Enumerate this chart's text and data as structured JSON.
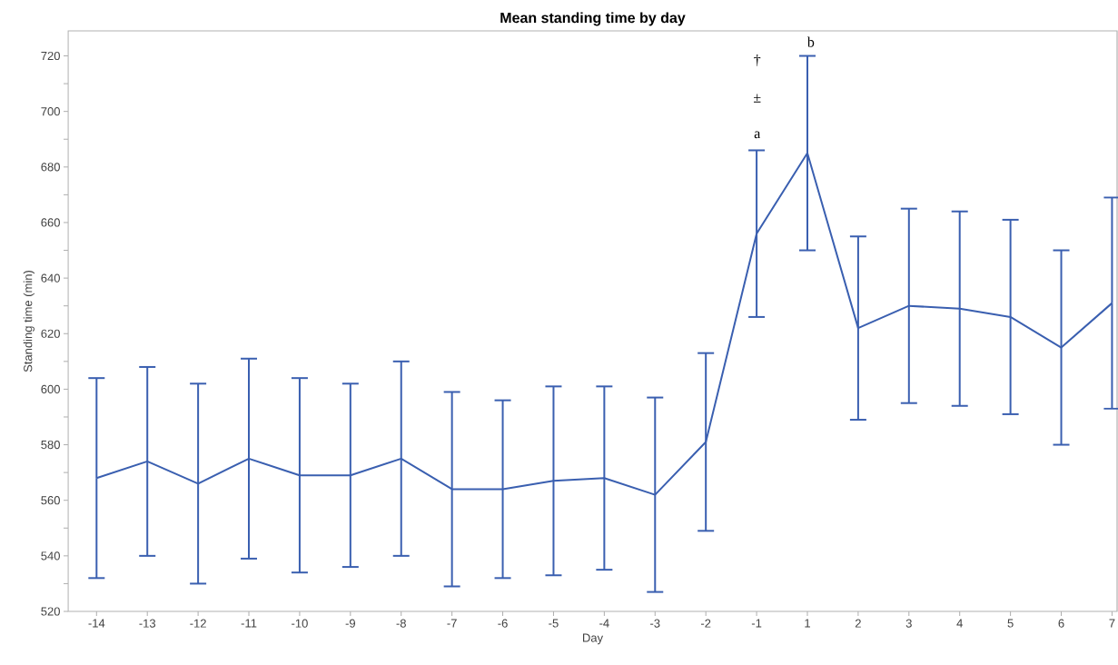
{
  "chart_data": {
    "type": "line",
    "title": "Mean standing time by day",
    "xlabel": "Day",
    "ylabel": "Standing time (min)",
    "categories": [
      "-14",
      "-13",
      "-12",
      "-11",
      "-10",
      "-9",
      "-8",
      "-7",
      "-6",
      "-5",
      "-4",
      "-3",
      "-2",
      "-1",
      "1",
      "2",
      "3",
      "4",
      "5",
      "6",
      "7"
    ],
    "values": [
      568,
      574,
      566,
      575,
      569,
      569,
      575,
      564,
      564,
      567,
      568,
      562,
      581,
      656,
      685,
      622,
      630,
      629,
      626,
      615,
      631
    ],
    "errors": [
      36,
      34,
      36,
      36,
      35,
      33,
      35,
      35,
      32,
      34,
      33,
      35,
      32,
      30,
      35,
      33,
      35,
      35,
      35,
      35,
      38
    ],
    "color": "#3a5fb0",
    "marker": "none",
    "line_style": "solid",
    "ylim": [
      520,
      729
    ],
    "yticks": [
      520,
      {
        "value": 530,
        "label": null
      },
      540,
      {
        "value": 550,
        "label": null
      },
      560,
      {
        "value": 570,
        "label": null
      },
      580,
      {
        "value": 590,
        "label": null
      },
      600,
      {
        "value": 610,
        "label": null
      },
      620,
      {
        "value": 630,
        "label": null
      },
      640,
      {
        "value": 650,
        "label": null
      },
      660,
      {
        "value": 670,
        "label": null
      },
      680,
      {
        "value": 690,
        "label": null
      },
      700,
      {
        "value": 710,
        "label": null
      },
      720
    ],
    "annotations": [
      "a",
      "±",
      "†",
      "b"
    ]
  }
}
